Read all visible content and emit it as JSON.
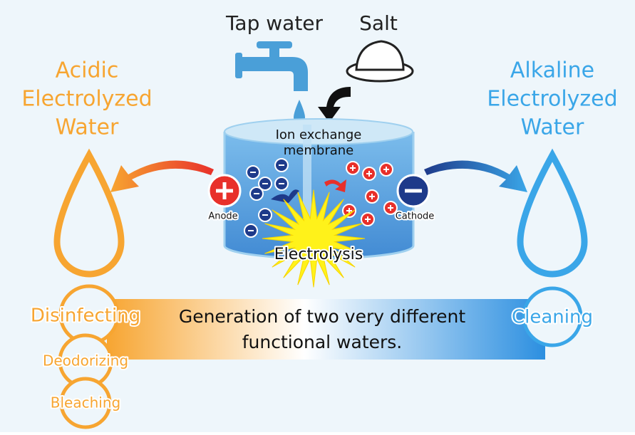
{
  "inputs": {
    "tap_water": "Tap water",
    "salt": "Salt"
  },
  "acidic": {
    "lines": [
      "Acidic",
      "Electrolyzed",
      "Water"
    ]
  },
  "alkaline": {
    "lines": [
      "Alkaline",
      "Electrolyzed",
      "Water"
    ]
  },
  "tank": {
    "membrane_lines": [
      "Ion exchange",
      "membrane"
    ],
    "anode": "Anode",
    "cathode": "Cathode",
    "process": "Electrolysis"
  },
  "acidic_uses": [
    "Disinfecting",
    "Deodorizing",
    "Bleaching"
  ],
  "alkaline_uses": [
    "Cleaning"
  ],
  "banner": {
    "lines": [
      "Generation of two very different",
      "functional waters."
    ]
  }
}
